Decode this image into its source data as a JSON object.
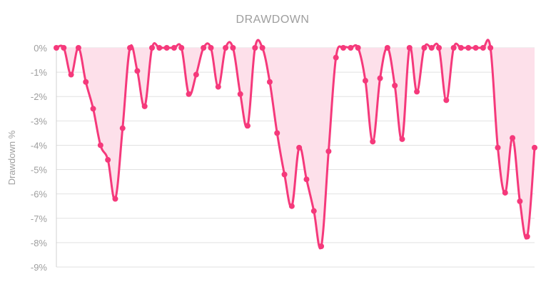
{
  "chart_data": {
    "type": "area",
    "title": "DRAWDOWN",
    "ylabel": "Drawdown %",
    "xlabel": "",
    "ylim": [
      -9,
      0
    ],
    "y_ticks": [
      0,
      -1,
      -2,
      -3,
      -4,
      -5,
      -6,
      -7,
      -8,
      -9
    ],
    "y_tick_labels": [
      "0%",
      "-1%",
      "-2%",
      "-3%",
      "-4%",
      "-5%",
      "-6%",
      "-7%",
      "-8%",
      "-9%"
    ],
    "grid": true,
    "colors": {
      "line": "#f5397b",
      "fill": "#fde0ea",
      "point": "#f5397b"
    },
    "series": [
      {
        "values": [
          0,
          0,
          -1.1,
          0,
          -1.4,
          -2.5,
          -4.0,
          -4.6,
          -6.2,
          -3.3,
          0,
          -0.95,
          -2.4,
          0,
          0,
          0,
          0,
          0,
          -1.9,
          -1.1,
          0,
          0,
          -1.6,
          0,
          0,
          -1.9,
          -3.2,
          0,
          0,
          -1.4,
          -3.5,
          -5.2,
          -6.5,
          -4.1,
          -5.4,
          -6.7,
          -8.15,
          -4.25,
          -0.4,
          0,
          0,
          0,
          -1.35,
          -3.85,
          -1.25,
          0,
          -1.55,
          -3.75,
          0,
          -1.8,
          0,
          0,
          0,
          -2.15,
          0,
          0,
          0,
          0,
          0,
          0,
          -4.1,
          -5.95,
          -3.7,
          -6.3,
          -7.75,
          -4.1
        ]
      }
    ]
  }
}
